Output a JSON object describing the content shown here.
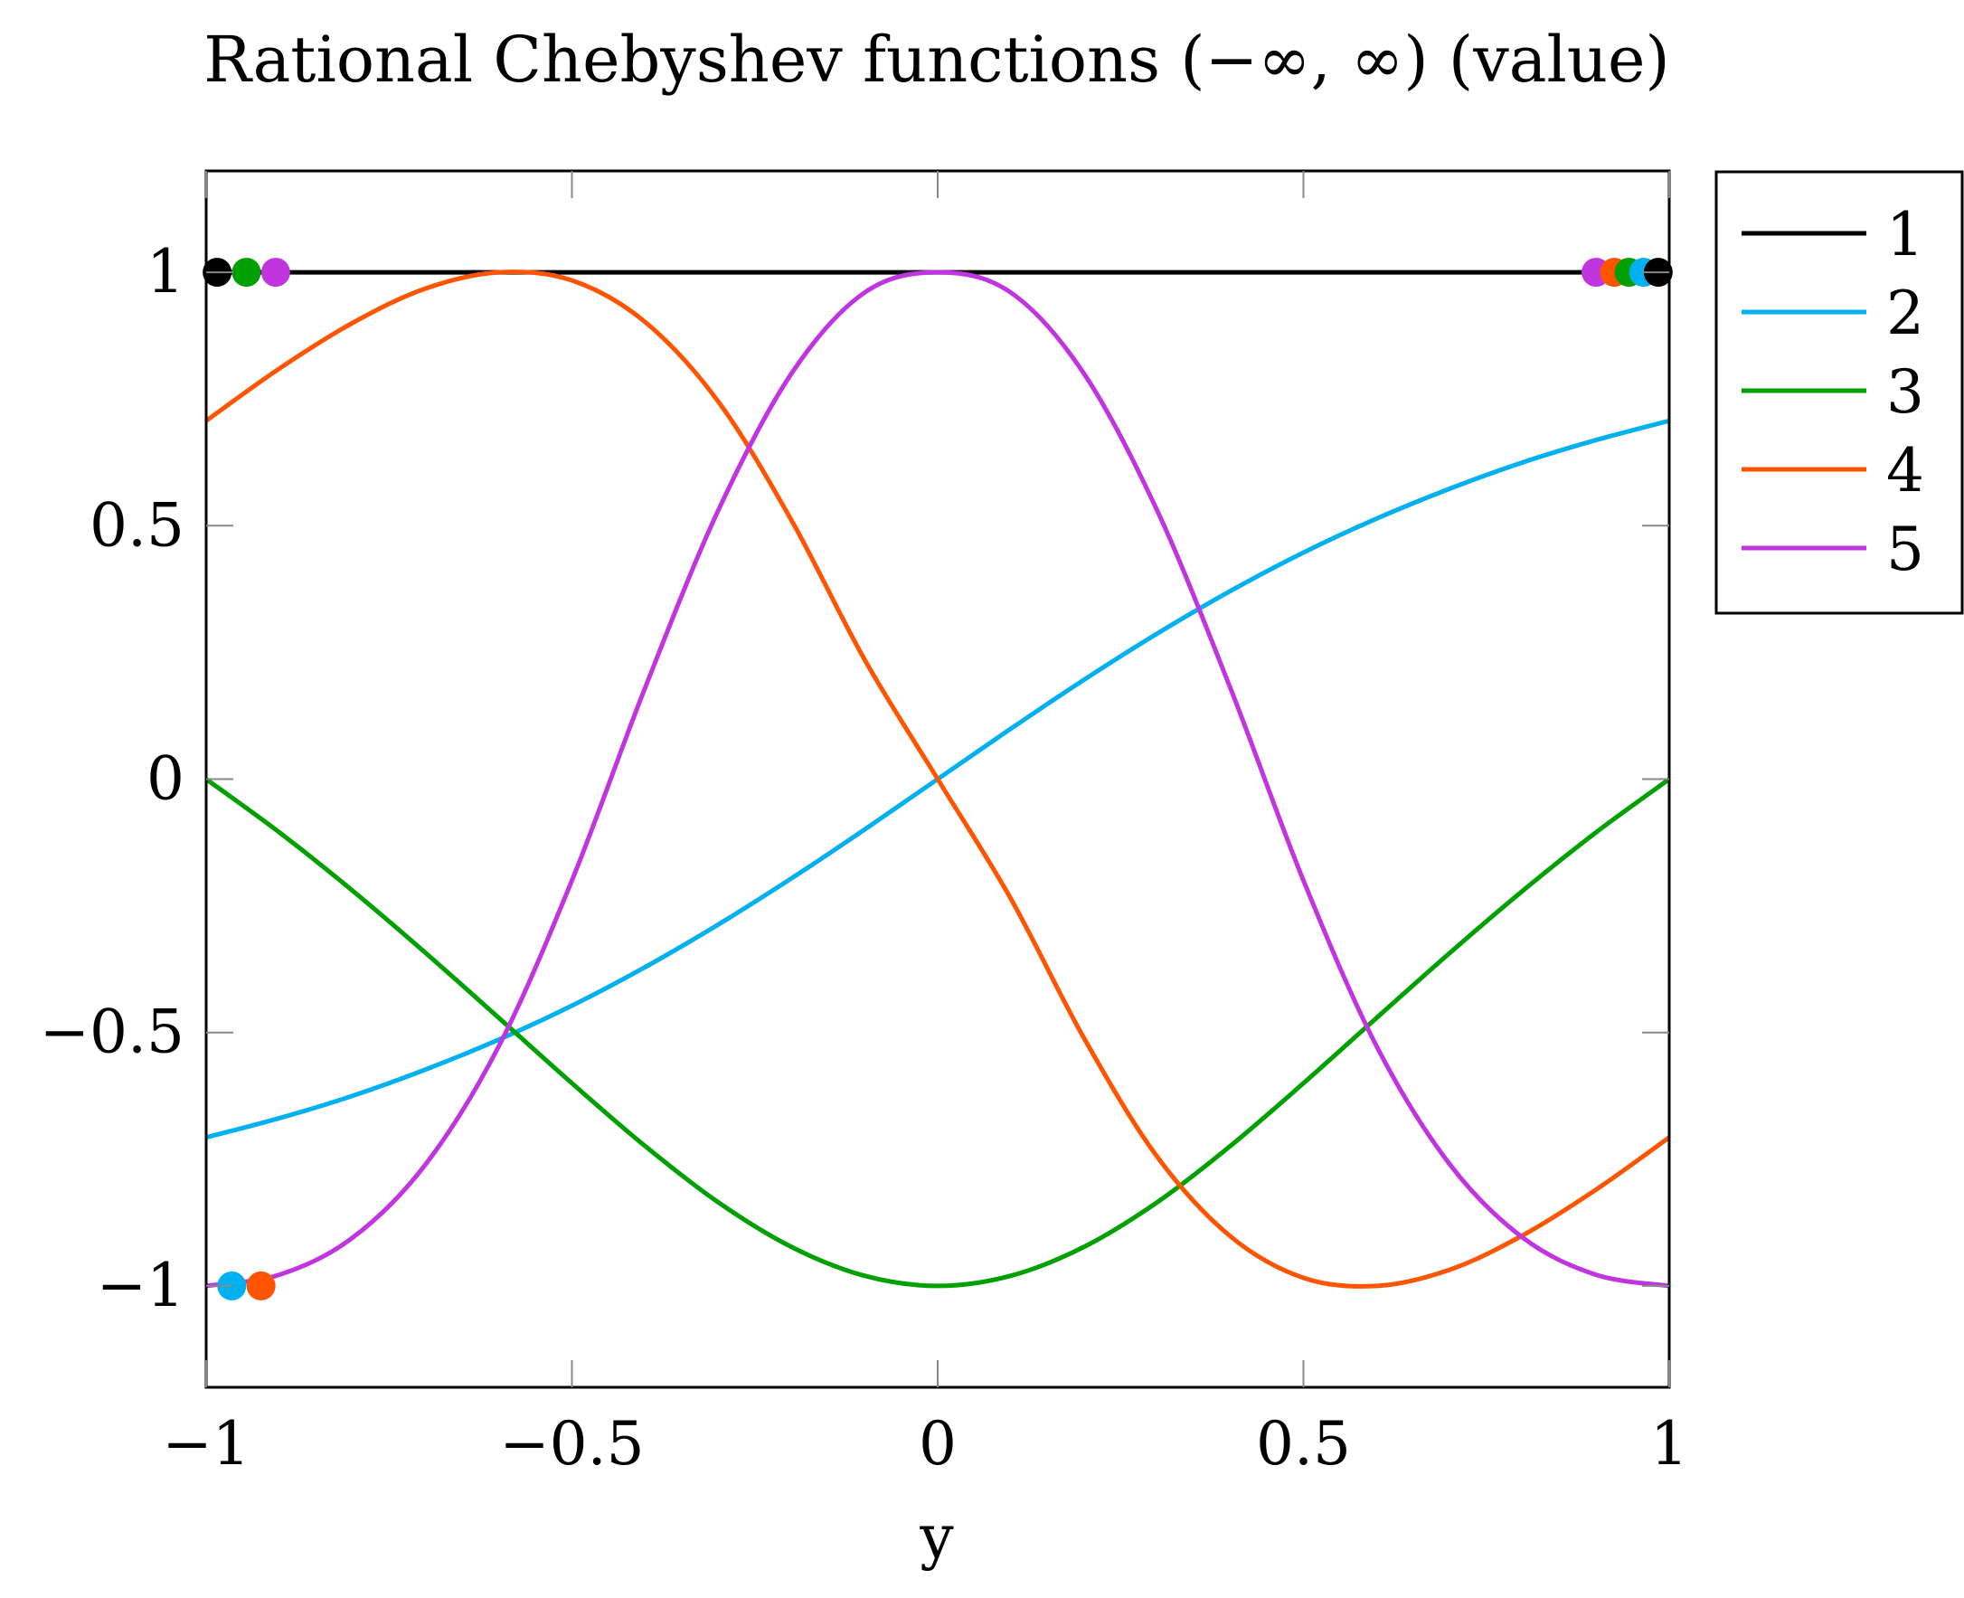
{
  "chart_data": {
    "type": "line",
    "title": "Rational Chebyshev functions (−∞, ∞) (value)",
    "xlabel": "y",
    "ylabel": "",
    "xlim": [
      -1,
      1
    ],
    "ylim": [
      -1.2,
      1.2
    ],
    "xticks": [
      -1,
      -0.5,
      0,
      0.5,
      1
    ],
    "xtick_labels": [
      "−1",
      "−0.5",
      "0",
      "0.5",
      "1"
    ],
    "yticks": [
      -1,
      -0.5,
      0,
      0.5,
      1
    ],
    "ytick_labels": [
      "−1",
      "−0.5",
      "0",
      "0.5",
      "1"
    ],
    "grid": false,
    "legend_position": "outside-top-right",
    "series": [
      {
        "name": "1",
        "color": "#000000",
        "x": [
          -1,
          -0.9,
          -0.8,
          -0.7,
          -0.6,
          -0.5,
          -0.4,
          -0.3,
          -0.2,
          -0.1,
          0,
          0.1,
          0.2,
          0.3,
          0.4,
          0.5,
          0.6,
          0.7,
          0.8,
          0.9,
          1
        ],
        "y": [
          1,
          1,
          1,
          1,
          1,
          1,
          1,
          1,
          1,
          1,
          1,
          1,
          1,
          1,
          1,
          1,
          1,
          1,
          1,
          1,
          1
        ]
      },
      {
        "name": "2",
        "color": "#00b0f0",
        "x": [
          -1,
          -0.9,
          -0.8,
          -0.7,
          -0.6,
          -0.5,
          -0.4,
          -0.3,
          -0.2,
          -0.1,
          0,
          0.1,
          0.2,
          0.3,
          0.4,
          0.5,
          0.6,
          0.7,
          0.8,
          0.9,
          1
        ],
        "y": [
          -0.707,
          -0.669,
          -0.625,
          -0.573,
          -0.514,
          -0.447,
          -0.371,
          -0.287,
          -0.196,
          -0.0995,
          0,
          0.0995,
          0.196,
          0.287,
          0.371,
          0.447,
          0.514,
          0.573,
          0.625,
          0.669,
          0.707
        ]
      },
      {
        "name": "3",
        "color": "#00a000",
        "x": [
          -1,
          -0.9,
          -0.8,
          -0.7,
          -0.6,
          -0.5,
          -0.4,
          -0.3,
          -0.2,
          -0.1,
          0,
          0.1,
          0.2,
          0.3,
          0.4,
          0.5,
          0.6,
          0.7,
          0.8,
          0.9,
          1
        ],
        "y": [
          0,
          -0.105,
          -0.22,
          -0.343,
          -0.471,
          -0.6,
          -0.724,
          -0.835,
          -0.923,
          -0.98,
          -1,
          -0.98,
          -0.923,
          -0.835,
          -0.724,
          -0.6,
          -0.471,
          -0.343,
          -0.22,
          -0.105,
          0
        ]
      },
      {
        "name": "4",
        "color": "#ff5500",
        "x": [
          -1,
          -0.9,
          -0.8,
          -0.7,
          -0.6,
          -0.5,
          -0.4,
          -0.3,
          -0.2,
          -0.1,
          0,
          0.1,
          0.2,
          0.3,
          0.4,
          0.5,
          0.6,
          0.7,
          0.8,
          0.9,
          1
        ],
        "y": [
          0.707,
          0.81,
          0.9,
          0.968,
          1.0,
          0.984,
          0.902,
          0.745,
          0.511,
          0.236,
          0,
          -0.236,
          -0.511,
          -0.745,
          -0.902,
          -0.984,
          -1.0,
          -0.968,
          -0.9,
          -0.81,
          -0.707
        ]
      },
      {
        "name": "5",
        "color": "#c035e0",
        "x": [
          -1,
          -0.9,
          -0.8,
          -0.7,
          -0.6,
          -0.5,
          -0.4,
          -0.3,
          -0.2,
          -0.1,
          0,
          0.1,
          0.2,
          0.3,
          0.4,
          0.5,
          0.6,
          0.7,
          0.8,
          0.9,
          1
        ],
        "y": [
          -1,
          -0.978,
          -0.905,
          -0.76,
          -0.527,
          -0.2,
          0.18,
          0.53,
          0.8,
          0.96,
          1,
          0.96,
          0.8,
          0.53,
          0.18,
          -0.2,
          -0.527,
          -0.76,
          -0.905,
          -0.978,
          -1
        ]
      }
    ],
    "markers": [
      {
        "series": "1",
        "x": -0.985,
        "y": 1
      },
      {
        "series": "3",
        "x": -0.945,
        "y": 1
      },
      {
        "series": "5",
        "x": -0.905,
        "y": 1
      },
      {
        "series": "2",
        "x": -0.965,
        "y": -1
      },
      {
        "series": "4",
        "x": -0.925,
        "y": -1
      },
      {
        "series": "5",
        "x": 0.9,
        "y": 1
      },
      {
        "series": "4",
        "x": 0.925,
        "y": 1
      },
      {
        "series": "3",
        "x": 0.945,
        "y": 1
      },
      {
        "series": "2",
        "x": 0.965,
        "y": 1
      },
      {
        "series": "1",
        "x": 0.985,
        "y": 1
      }
    ]
  }
}
